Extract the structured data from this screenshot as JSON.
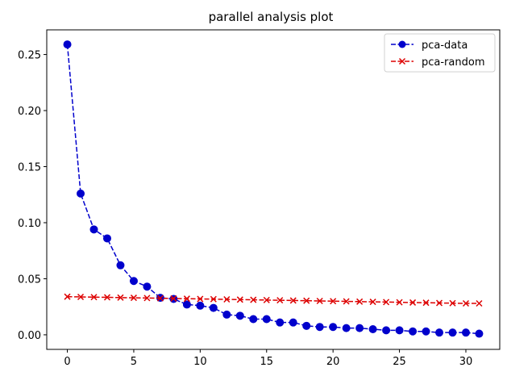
{
  "chart_data": {
    "type": "line",
    "title": "parallel analysis plot",
    "xlabel": "",
    "ylabel": "",
    "xlim": [
      -1.55,
      32.55
    ],
    "ylim": [
      -0.013,
      0.272
    ],
    "xticks": [
      0,
      5,
      10,
      15,
      20,
      25,
      30
    ],
    "yticks": [
      0.0,
      0.05,
      0.1,
      0.15,
      0.2,
      0.25
    ],
    "xtick_labels": [
      "0",
      "5",
      "10",
      "15",
      "20",
      "25",
      "30"
    ],
    "ytick_labels": [
      "0.00",
      "0.05",
      "0.10",
      "0.15",
      "0.20",
      "0.25"
    ],
    "grid": false,
    "legend_position": "top-right",
    "x": [
      0,
      1,
      2,
      3,
      4,
      5,
      6,
      7,
      8,
      9,
      10,
      11,
      12,
      13,
      14,
      15,
      16,
      17,
      18,
      19,
      20,
      21,
      22,
      23,
      24,
      25,
      26,
      27,
      28,
      29,
      30,
      31
    ],
    "series": [
      {
        "name": "pca-data",
        "color": "#0000cc",
        "marker": "circle",
        "line_style": "dashed",
        "values": [
          0.259,
          0.126,
          0.094,
          0.086,
          0.062,
          0.048,
          0.043,
          0.033,
          0.032,
          0.027,
          0.026,
          0.024,
          0.018,
          0.017,
          0.014,
          0.014,
          0.011,
          0.011,
          0.008,
          0.007,
          0.007,
          0.006,
          0.006,
          0.005,
          0.004,
          0.004,
          0.003,
          0.003,
          0.002,
          0.002,
          0.002,
          0.001
        ]
      },
      {
        "name": "pca-random",
        "color": "#dd0000",
        "marker": "x",
        "line_style": "dashed",
        "values": [
          0.034,
          0.0338,
          0.0336,
          0.0334,
          0.0332,
          0.033,
          0.0328,
          0.0326,
          0.0324,
          0.0322,
          0.032,
          0.0318,
          0.0316,
          0.0314,
          0.0312,
          0.031,
          0.0308,
          0.0306,
          0.0304,
          0.0302,
          0.03,
          0.0298,
          0.0296,
          0.0294,
          0.0292,
          0.029,
          0.0288,
          0.0286,
          0.0284,
          0.0282,
          0.028,
          0.028
        ]
      }
    ]
  }
}
